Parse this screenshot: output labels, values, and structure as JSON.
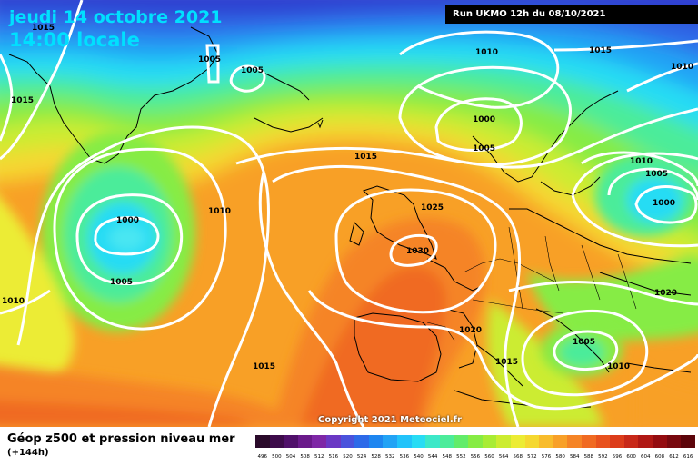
{
  "header": {
    "date": "jeudi 14 octobre 2021",
    "time": "14:00 locale",
    "run": "Run UKMO 12h du 08/10/2021"
  },
  "copyright": "Copyright 2021 Meteociel.fr",
  "footer": {
    "title": "Géop z500 et pression niveau mer",
    "subtitle": "(+144h)"
  },
  "legend": {
    "values": [
      "496",
      "500",
      "504",
      "508",
      "512",
      "516",
      "520",
      "524",
      "528",
      "532",
      "536",
      "540",
      "544",
      "548",
      "552",
      "556",
      "560",
      "564",
      "568",
      "572",
      "576",
      "580",
      "584",
      "588",
      "592",
      "596",
      "600",
      "604",
      "608",
      "612",
      "616"
    ],
    "colors": [
      "#2a0a2a",
      "#3d0b4a",
      "#50106a",
      "#6a1a8a",
      "#7e27a6",
      "#6a38c4",
      "#4a52dc",
      "#2d6ae8",
      "#1e86f0",
      "#22a3f5",
      "#22c3fa",
      "#28dcf4",
      "#3ce8c8",
      "#4cec9a",
      "#62ec6a",
      "#86ec44",
      "#a8ec34",
      "#ccec30",
      "#ecec34",
      "#f5d830",
      "#f8bc2c",
      "#f8a028",
      "#f58426",
      "#f06a22",
      "#e8521e",
      "#dc3c1a",
      "#c82818",
      "#b01814",
      "#940c10",
      "#78080e",
      "#5c040a"
    ]
  },
  "isobars": [
    {
      "label": "1015",
      "style": "left-top"
    },
    {
      "label": "1005",
      "style": "greenland"
    },
    {
      "label": "1005",
      "style": "greenland2"
    },
    {
      "label": "1015",
      "style": "left"
    },
    {
      "label": "1010",
      "style": "north"
    },
    {
      "label": "1015",
      "style": "ne"
    },
    {
      "label": "1010",
      "style": "ne-edge"
    },
    {
      "label": "1000",
      "style": "norway"
    },
    {
      "label": "1005",
      "style": "norway2"
    },
    {
      "label": "1015",
      "style": "center-top"
    },
    {
      "label": "1010",
      "style": "baltic"
    },
    {
      "label": "1005",
      "style": "baltic2"
    },
    {
      "label": "1000",
      "style": "baltic-low"
    },
    {
      "label": "1025",
      "style": "uk"
    },
    {
      "label": "1030",
      "style": "uk-high"
    },
    {
      "label": "1000",
      "style": "atl-low"
    },
    {
      "label": "1010",
      "style": "atl"
    },
    {
      "label": "1005",
      "style": "atl2"
    },
    {
      "label": "1010",
      "style": "west-edge"
    },
    {
      "label": "1020",
      "style": "france"
    },
    {
      "label": "1020",
      "style": "east"
    },
    {
      "label": "1015",
      "style": "iberia"
    },
    {
      "label": "1015",
      "style": "med"
    },
    {
      "label": "1005",
      "style": "greece"
    },
    {
      "label": "1010",
      "style": "greece2"
    }
  ]
}
